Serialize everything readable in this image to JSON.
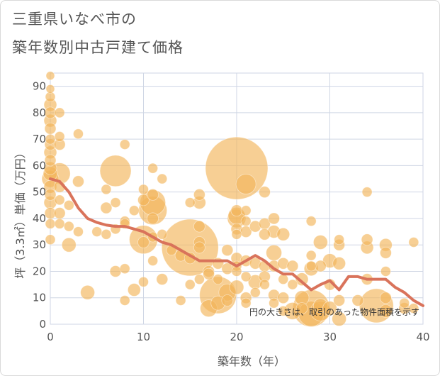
{
  "chart_data": {
    "type": "scatter",
    "title_line1": "三重県いなべ市の",
    "title_line2": "築年数別中古戸建て価格",
    "xlabel": "築年数（年）",
    "ylabel": "坪（3.3㎡）単価（万円）",
    "note": "円の大きさは、取引のあった物件面積を示す",
    "xlim": [
      0,
      40
    ],
    "ylim": [
      0,
      95
    ],
    "xticks": [
      0,
      10,
      20,
      30,
      40
    ],
    "yticks": [
      0,
      10,
      20,
      30,
      40,
      50,
      60,
      70,
      80,
      90
    ],
    "grid": true,
    "colors": {
      "bubble": "#f2b55a",
      "line": "#d9735b",
      "grid": "#cfd6e4"
    },
    "trend_line": {
      "x": [
        0,
        1,
        2,
        3,
        4,
        5,
        6,
        7,
        8,
        9,
        10,
        11,
        12,
        13,
        14,
        15,
        16,
        17,
        18,
        19,
        20,
        21,
        22,
        23,
        24,
        25,
        26,
        27,
        28,
        29,
        30,
        31,
        32,
        33,
        34,
        35,
        36,
        37,
        38,
        39,
        40
      ],
      "y": [
        55,
        54,
        50,
        44,
        40,
        38.5,
        37.5,
        37,
        37,
        36,
        35,
        33,
        31,
        30,
        28,
        26,
        24,
        24,
        24,
        24,
        22,
        24,
        26,
        24,
        21,
        19,
        19,
        16,
        13,
        15,
        16.5,
        13,
        18,
        18,
        17,
        17,
        17,
        14,
        12,
        9,
        7
      ]
    },
    "bubbles": [
      {
        "x": 0,
        "y": 94,
        "s": 6
      },
      {
        "x": 0,
        "y": 89,
        "s": 6
      },
      {
        "x": 0,
        "y": 86,
        "s": 7
      },
      {
        "x": 0,
        "y": 83,
        "s": 9
      },
      {
        "x": 0,
        "y": 80,
        "s": 8
      },
      {
        "x": 0,
        "y": 77,
        "s": 9
      },
      {
        "x": 0,
        "y": 74,
        "s": 8
      },
      {
        "x": 0,
        "y": 70,
        "s": 7
      },
      {
        "x": 0,
        "y": 68,
        "s": 8
      },
      {
        "x": 0,
        "y": 65,
        "s": 9
      },
      {
        "x": 0,
        "y": 62,
        "s": 8
      },
      {
        "x": 0,
        "y": 59,
        "s": 9
      },
      {
        "x": 0,
        "y": 57,
        "s": 10
      },
      {
        "x": 0,
        "y": 55,
        "s": 12
      },
      {
        "x": 0,
        "y": 52,
        "s": 9
      },
      {
        "x": 0,
        "y": 49,
        "s": 8
      },
      {
        "x": 0,
        "y": 46,
        "s": 9
      },
      {
        "x": 0,
        "y": 42,
        "s": 8
      },
      {
        "x": 0,
        "y": 38,
        "s": 7
      },
      {
        "x": 0,
        "y": 32,
        "s": 7
      },
      {
        "x": 1,
        "y": 80,
        "s": 7
      },
      {
        "x": 1,
        "y": 71,
        "s": 7
      },
      {
        "x": 1,
        "y": 68,
        "s": 8
      },
      {
        "x": 1,
        "y": 57,
        "s": 15
      },
      {
        "x": 1,
        "y": 52,
        "s": 8
      },
      {
        "x": 1,
        "y": 47,
        "s": 7
      },
      {
        "x": 1,
        "y": 42,
        "s": 8
      },
      {
        "x": 1,
        "y": 38,
        "s": 7
      },
      {
        "x": 2,
        "y": 45,
        "s": 7
      },
      {
        "x": 2,
        "y": 37,
        "s": 7
      },
      {
        "x": 2,
        "y": 30,
        "s": 10
      },
      {
        "x": 3,
        "y": 72,
        "s": 7
      },
      {
        "x": 3,
        "y": 54,
        "s": 8
      },
      {
        "x": 3,
        "y": 35,
        "s": 7
      },
      {
        "x": 4,
        "y": 12,
        "s": 10
      },
      {
        "x": 5,
        "y": 35,
        "s": 7
      },
      {
        "x": 6,
        "y": 51,
        "s": 7
      },
      {
        "x": 6,
        "y": 44,
        "s": 8
      },
      {
        "x": 6,
        "y": 34,
        "s": 7
      },
      {
        "x": 7,
        "y": 58,
        "s": 22
      },
      {
        "x": 7,
        "y": 46,
        "s": 7
      },
      {
        "x": 7,
        "y": 36,
        "s": 7
      },
      {
        "x": 7,
        "y": 20,
        "s": 8
      },
      {
        "x": 8,
        "y": 68,
        "s": 7
      },
      {
        "x": 8,
        "y": 39,
        "s": 7
      },
      {
        "x": 8,
        "y": 38,
        "s": 7
      },
      {
        "x": 8,
        "y": 21,
        "s": 7
      },
      {
        "x": 8,
        "y": 9,
        "s": 7
      },
      {
        "x": 9,
        "y": 43,
        "s": 7
      },
      {
        "x": 9,
        "y": 13,
        "s": 9
      },
      {
        "x": 10,
        "y": 51,
        "s": 7
      },
      {
        "x": 10,
        "y": 47,
        "s": 8
      },
      {
        "x": 10,
        "y": 32,
        "s": 20
      },
      {
        "x": 10,
        "y": 31,
        "s": 8
      },
      {
        "x": 10,
        "y": 16,
        "s": 7
      },
      {
        "x": 11,
        "y": 59,
        "s": 7
      },
      {
        "x": 11,
        "y": 49,
        "s": 8
      },
      {
        "x": 11,
        "y": 46,
        "s": 18
      },
      {
        "x": 11,
        "y": 43,
        "s": 20
      },
      {
        "x": 11,
        "y": 40,
        "s": 8
      },
      {
        "x": 11,
        "y": 33,
        "s": 7
      },
      {
        "x": 11,
        "y": 24,
        "s": 7
      },
      {
        "x": 12,
        "y": 55,
        "s": 7
      },
      {
        "x": 12,
        "y": 34,
        "s": 7
      },
      {
        "x": 12,
        "y": 17,
        "s": 8
      },
      {
        "x": 13,
        "y": 28,
        "s": 7
      },
      {
        "x": 14,
        "y": 26,
        "s": 8
      },
      {
        "x": 14,
        "y": 9,
        "s": 7
      },
      {
        "x": 15,
        "y": 46,
        "s": 7
      },
      {
        "x": 15,
        "y": 29,
        "s": 40
      },
      {
        "x": 15,
        "y": 25,
        "s": 8
      },
      {
        "x": 15,
        "y": 15,
        "s": 7
      },
      {
        "x": 16,
        "y": 49,
        "s": 8
      },
      {
        "x": 16,
        "y": 46,
        "s": 9
      },
      {
        "x": 16,
        "y": 37,
        "s": 8
      },
      {
        "x": 16,
        "y": 31,
        "s": 8
      },
      {
        "x": 16,
        "y": 29,
        "s": 8
      },
      {
        "x": 16,
        "y": 17,
        "s": 7
      },
      {
        "x": 17,
        "y": 20,
        "s": 8
      },
      {
        "x": 17,
        "y": 19,
        "s": 8
      },
      {
        "x": 17,
        "y": 6,
        "s": 12
      },
      {
        "x": 18,
        "y": 23,
        "s": 8
      },
      {
        "x": 18,
        "y": 17,
        "s": 7
      },
      {
        "x": 18,
        "y": 11,
        "s": 26
      },
      {
        "x": 18,
        "y": 8,
        "s": 10
      },
      {
        "x": 19,
        "y": 28,
        "s": 8
      },
      {
        "x": 19,
        "y": 21,
        "s": 8
      },
      {
        "x": 19,
        "y": 12,
        "s": 12
      },
      {
        "x": 19,
        "y": 9,
        "s": 8
      },
      {
        "x": 20,
        "y": 59,
        "s": 44
      },
      {
        "x": 20,
        "y": 43,
        "s": 8
      },
      {
        "x": 20,
        "y": 41,
        "s": 12
      },
      {
        "x": 20,
        "y": 40,
        "s": 13
      },
      {
        "x": 20,
        "y": 36,
        "s": 8
      },
      {
        "x": 20,
        "y": 34,
        "s": 7
      },
      {
        "x": 20,
        "y": 25,
        "s": 8
      },
      {
        "x": 20,
        "y": 22,
        "s": 7
      },
      {
        "x": 20,
        "y": 20,
        "s": 7
      },
      {
        "x": 20,
        "y": 14,
        "s": 10
      },
      {
        "x": 21,
        "y": 53,
        "s": 14
      },
      {
        "x": 21,
        "y": 43,
        "s": 7
      },
      {
        "x": 21,
        "y": 39,
        "s": 7
      },
      {
        "x": 21,
        "y": 35,
        "s": 8
      },
      {
        "x": 21,
        "y": 24,
        "s": 8
      },
      {
        "x": 21,
        "y": 18,
        "s": 7
      },
      {
        "x": 21,
        "y": 10,
        "s": 8
      },
      {
        "x": 21,
        "y": 8,
        "s": 7
      },
      {
        "x": 22,
        "y": 37,
        "s": 8
      },
      {
        "x": 22,
        "y": 23,
        "s": 8
      },
      {
        "x": 22,
        "y": 16,
        "s": 10
      },
      {
        "x": 22,
        "y": 12,
        "s": 7
      },
      {
        "x": 23,
        "y": 50,
        "s": 8
      },
      {
        "x": 23,
        "y": 38,
        "s": 8
      },
      {
        "x": 23,
        "y": 34,
        "s": 8
      },
      {
        "x": 23,
        "y": 22,
        "s": 8
      },
      {
        "x": 23,
        "y": 18,
        "s": 8
      },
      {
        "x": 23,
        "y": 15,
        "s": 7
      },
      {
        "x": 24,
        "y": 40,
        "s": 8
      },
      {
        "x": 24,
        "y": 35,
        "s": 9
      },
      {
        "x": 24,
        "y": 27,
        "s": 11
      },
      {
        "x": 24,
        "y": 22,
        "s": 8
      },
      {
        "x": 24,
        "y": 11,
        "s": 8
      },
      {
        "x": 24,
        "y": 8,
        "s": 7
      },
      {
        "x": 25,
        "y": 34,
        "s": 9
      },
      {
        "x": 25,
        "y": 23,
        "s": 8
      },
      {
        "x": 25,
        "y": 17,
        "s": 7
      },
      {
        "x": 25,
        "y": 10,
        "s": 8
      },
      {
        "x": 25,
        "y": 5,
        "s": 7
      },
      {
        "x": 26,
        "y": 22,
        "s": 8
      },
      {
        "x": 26,
        "y": 15,
        "s": 7
      },
      {
        "x": 26,
        "y": 5,
        "s": 12
      },
      {
        "x": 27,
        "y": 17,
        "s": 9
      },
      {
        "x": 27,
        "y": 10,
        "s": 10
      },
      {
        "x": 27,
        "y": 6,
        "s": 8
      },
      {
        "x": 28,
        "y": 39,
        "s": 7
      },
      {
        "x": 28,
        "y": 26,
        "s": 7
      },
      {
        "x": 28,
        "y": 22,
        "s": 7
      },
      {
        "x": 28,
        "y": 21,
        "s": 10
      },
      {
        "x": 28,
        "y": 6,
        "s": 26
      },
      {
        "x": 28,
        "y": 4,
        "s": 18
      },
      {
        "x": 29,
        "y": 31,
        "s": 10
      },
      {
        "x": 29,
        "y": 22,
        "s": 8
      },
      {
        "x": 29,
        "y": 7,
        "s": 10
      },
      {
        "x": 29,
        "y": 5,
        "s": 14
      },
      {
        "x": 30,
        "y": 24,
        "s": 10
      },
      {
        "x": 30,
        "y": 15,
        "s": 8
      },
      {
        "x": 30,
        "y": 6,
        "s": 10
      },
      {
        "x": 31,
        "y": 32,
        "s": 7
      },
      {
        "x": 31,
        "y": 30,
        "s": 8
      },
      {
        "x": 31,
        "y": 23,
        "s": 9
      },
      {
        "x": 31,
        "y": 9,
        "s": 8
      },
      {
        "x": 31,
        "y": 2,
        "s": 10
      },
      {
        "x": 33,
        "y": 9,
        "s": 8
      },
      {
        "x": 34,
        "y": 50,
        "s": 7
      },
      {
        "x": 34,
        "y": 32,
        "s": 8
      },
      {
        "x": 34,
        "y": 29,
        "s": 9
      },
      {
        "x": 34,
        "y": 17,
        "s": 8
      },
      {
        "x": 35,
        "y": 7,
        "s": 24
      },
      {
        "x": 36,
        "y": 30,
        "s": 9
      },
      {
        "x": 36,
        "y": 27,
        "s": 8
      },
      {
        "x": 36,
        "y": 20,
        "s": 7
      },
      {
        "x": 36,
        "y": 10,
        "s": 8
      },
      {
        "x": 36,
        "y": 5,
        "s": 9
      },
      {
        "x": 38,
        "y": 8,
        "s": 7
      },
      {
        "x": 38,
        "y": 6,
        "s": 8
      },
      {
        "x": 39,
        "y": 31,
        "s": 7
      },
      {
        "x": 39,
        "y": 6,
        "s": 7
      }
    ]
  }
}
